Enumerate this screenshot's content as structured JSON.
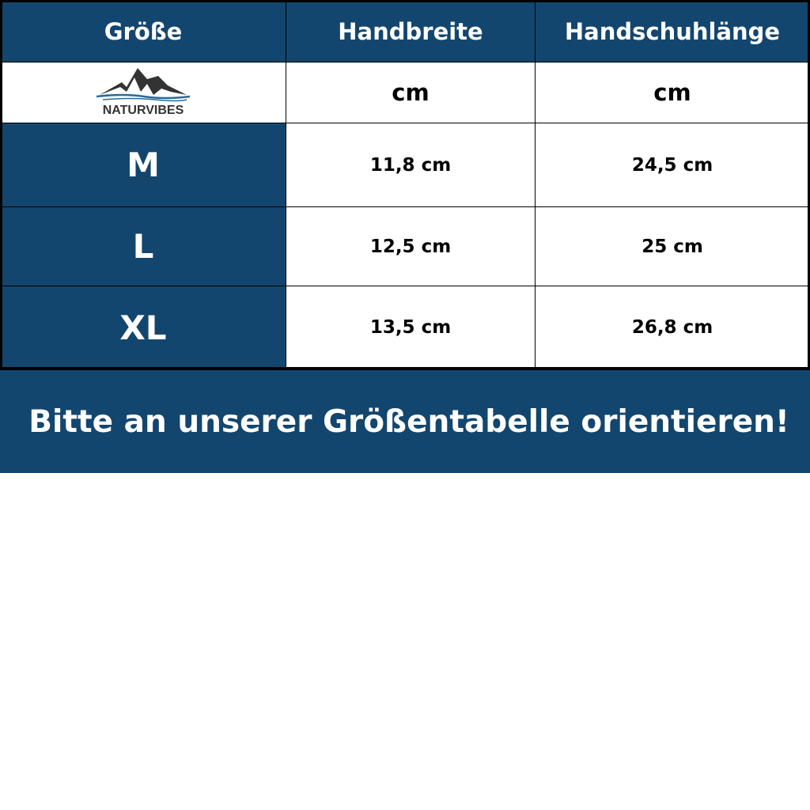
{
  "headers": [
    "Größe",
    "Handbreite",
    "Handschuhlänge"
  ],
  "units_row": {
    "logo_text": "NATURVIBES",
    "handbreite_unit": "cm",
    "laenge_unit": "cm"
  },
  "rows": [
    {
      "size": "M",
      "handbreite": "11,8 cm",
      "laenge": "24,5 cm"
    },
    {
      "size": "L",
      "handbreite": "12,5 cm",
      "laenge": "25 cm"
    },
    {
      "size": "XL",
      "handbreite": "13,5 cm",
      "laenge": "26,8 cm"
    }
  ],
  "banner": "Bitte an unserer Größentabelle orientieren!",
  "colors": {
    "accent": "#13466e",
    "text_on_accent": "#ffffff",
    "border": "#000000"
  }
}
